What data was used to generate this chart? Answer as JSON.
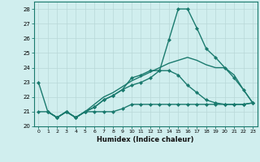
{
  "xlabel": "Humidex (Indice chaleur)",
  "background_color": "#d0eeee",
  "line_color": "#1a7a6e",
  "grid_color": "#b8d8d8",
  "xlim": [
    -0.5,
    23.5
  ],
  "ylim": [
    20,
    28.5
  ],
  "yticks": [
    20,
    21,
    22,
    23,
    24,
    25,
    26,
    27,
    28
  ],
  "xticks": [
    0,
    1,
    2,
    3,
    4,
    5,
    6,
    7,
    8,
    9,
    10,
    11,
    12,
    13,
    14,
    15,
    16,
    17,
    18,
    19,
    20,
    21,
    22,
    23
  ],
  "series": [
    {
      "x": [
        0,
        1,
        2,
        3,
        4,
        5,
        6,
        7,
        8,
        9,
        10,
        11,
        12,
        13,
        14,
        15,
        16,
        17,
        18,
        19,
        20,
        21,
        22,
        23
      ],
      "y": [
        23.0,
        21.0,
        20.6,
        21.0,
        20.6,
        21.0,
        21.3,
        21.8,
        22.1,
        22.5,
        23.3,
        23.5,
        23.8,
        23.8,
        25.9,
        28.0,
        28.0,
        26.7,
        25.3,
        24.7,
        24.0,
        23.3,
        22.5,
        21.6
      ],
      "marker": "D",
      "linewidth": 1.0,
      "markersize": 2.0
    },
    {
      "x": [
        1,
        2,
        3,
        4,
        5,
        6,
        7,
        8,
        9,
        10,
        11,
        12,
        13,
        14,
        15,
        16,
        17,
        18,
        19,
        20,
        21,
        22,
        23
      ],
      "y": [
        21.0,
        20.6,
        21.0,
        20.6,
        21.0,
        21.0,
        21.0,
        21.0,
        21.2,
        21.5,
        21.5,
        21.5,
        21.5,
        21.5,
        21.5,
        21.5,
        21.5,
        21.5,
        21.5,
        21.5,
        21.5,
        21.5,
        21.6
      ],
      "marker": "D",
      "linewidth": 1.0,
      "markersize": 2.0
    },
    {
      "x": [
        0,
        1,
        2,
        3,
        4,
        5,
        6,
        7,
        8,
        9,
        10,
        11,
        12,
        13,
        14,
        15,
        16,
        17,
        18,
        19,
        20,
        21,
        22,
        23
      ],
      "y": [
        21.0,
        21.0,
        20.6,
        21.0,
        20.6,
        21.0,
        21.3,
        21.8,
        22.1,
        22.5,
        22.8,
        23.0,
        23.3,
        23.8,
        23.8,
        23.5,
        22.8,
        22.3,
        21.8,
        21.6,
        21.5,
        21.5,
        21.5,
        21.6
      ],
      "marker": "D",
      "linewidth": 1.0,
      "markersize": 2.0
    },
    {
      "x": [
        1,
        2,
        3,
        4,
        5,
        6,
        7,
        8,
        9,
        10,
        11,
        12,
        13,
        14,
        15,
        16,
        17,
        18,
        19,
        20,
        21,
        22,
        23
      ],
      "y": [
        21.0,
        20.6,
        21.0,
        20.6,
        21.0,
        21.5,
        22.0,
        22.3,
        22.7,
        23.1,
        23.4,
        23.7,
        24.0,
        24.3,
        24.5,
        24.7,
        24.5,
        24.2,
        24.0,
        24.0,
        23.5,
        22.5,
        21.6
      ],
      "marker": null,
      "linewidth": 1.0,
      "markersize": 0
    }
  ]
}
